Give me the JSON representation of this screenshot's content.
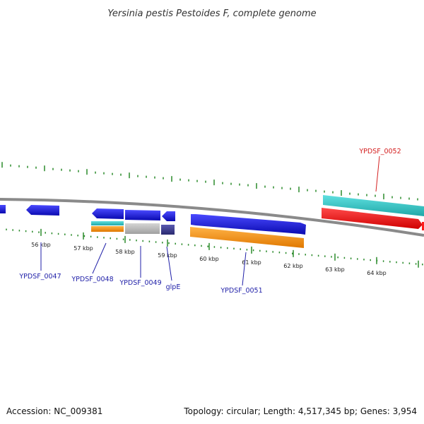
{
  "title": "Yersinia pestis Pestoides F, complete genome",
  "footer": {
    "accession": "Accession: NC_009381",
    "topology": "Topology: circular; Length: 4,517,345 bp; Genes: 3,954"
  },
  "ticks": [
    "56 kbp",
    "57 kbp",
    "58 kbp",
    "59 kbp",
    "60 kbp",
    "61 kbp",
    "62 kbp",
    "63 kbp",
    "64 kbp"
  ],
  "gene_labels": {
    "ypdsf_0047": "YPDSF_0047",
    "ypdsf_0048": "YPDSF_0048",
    "ypdsf_0049": "YPDSF_0049",
    "glpe": "glpE",
    "ypdsf_0051": "YPDSF_0051",
    "ypdsf_0052": "YPDSF_0052"
  },
  "colors": {
    "backbone": "#8a8a8a",
    "cds_blue": "#1a1ae6",
    "cds_orange": "#ff9a1a",
    "cds_cyan": "#33cccc",
    "cds_red": "#ff1a1a",
    "cds_gray": "#bbbbbb",
    "cds_navy": "#3b3b8c",
    "tick_green": "#2a8a2a"
  }
}
